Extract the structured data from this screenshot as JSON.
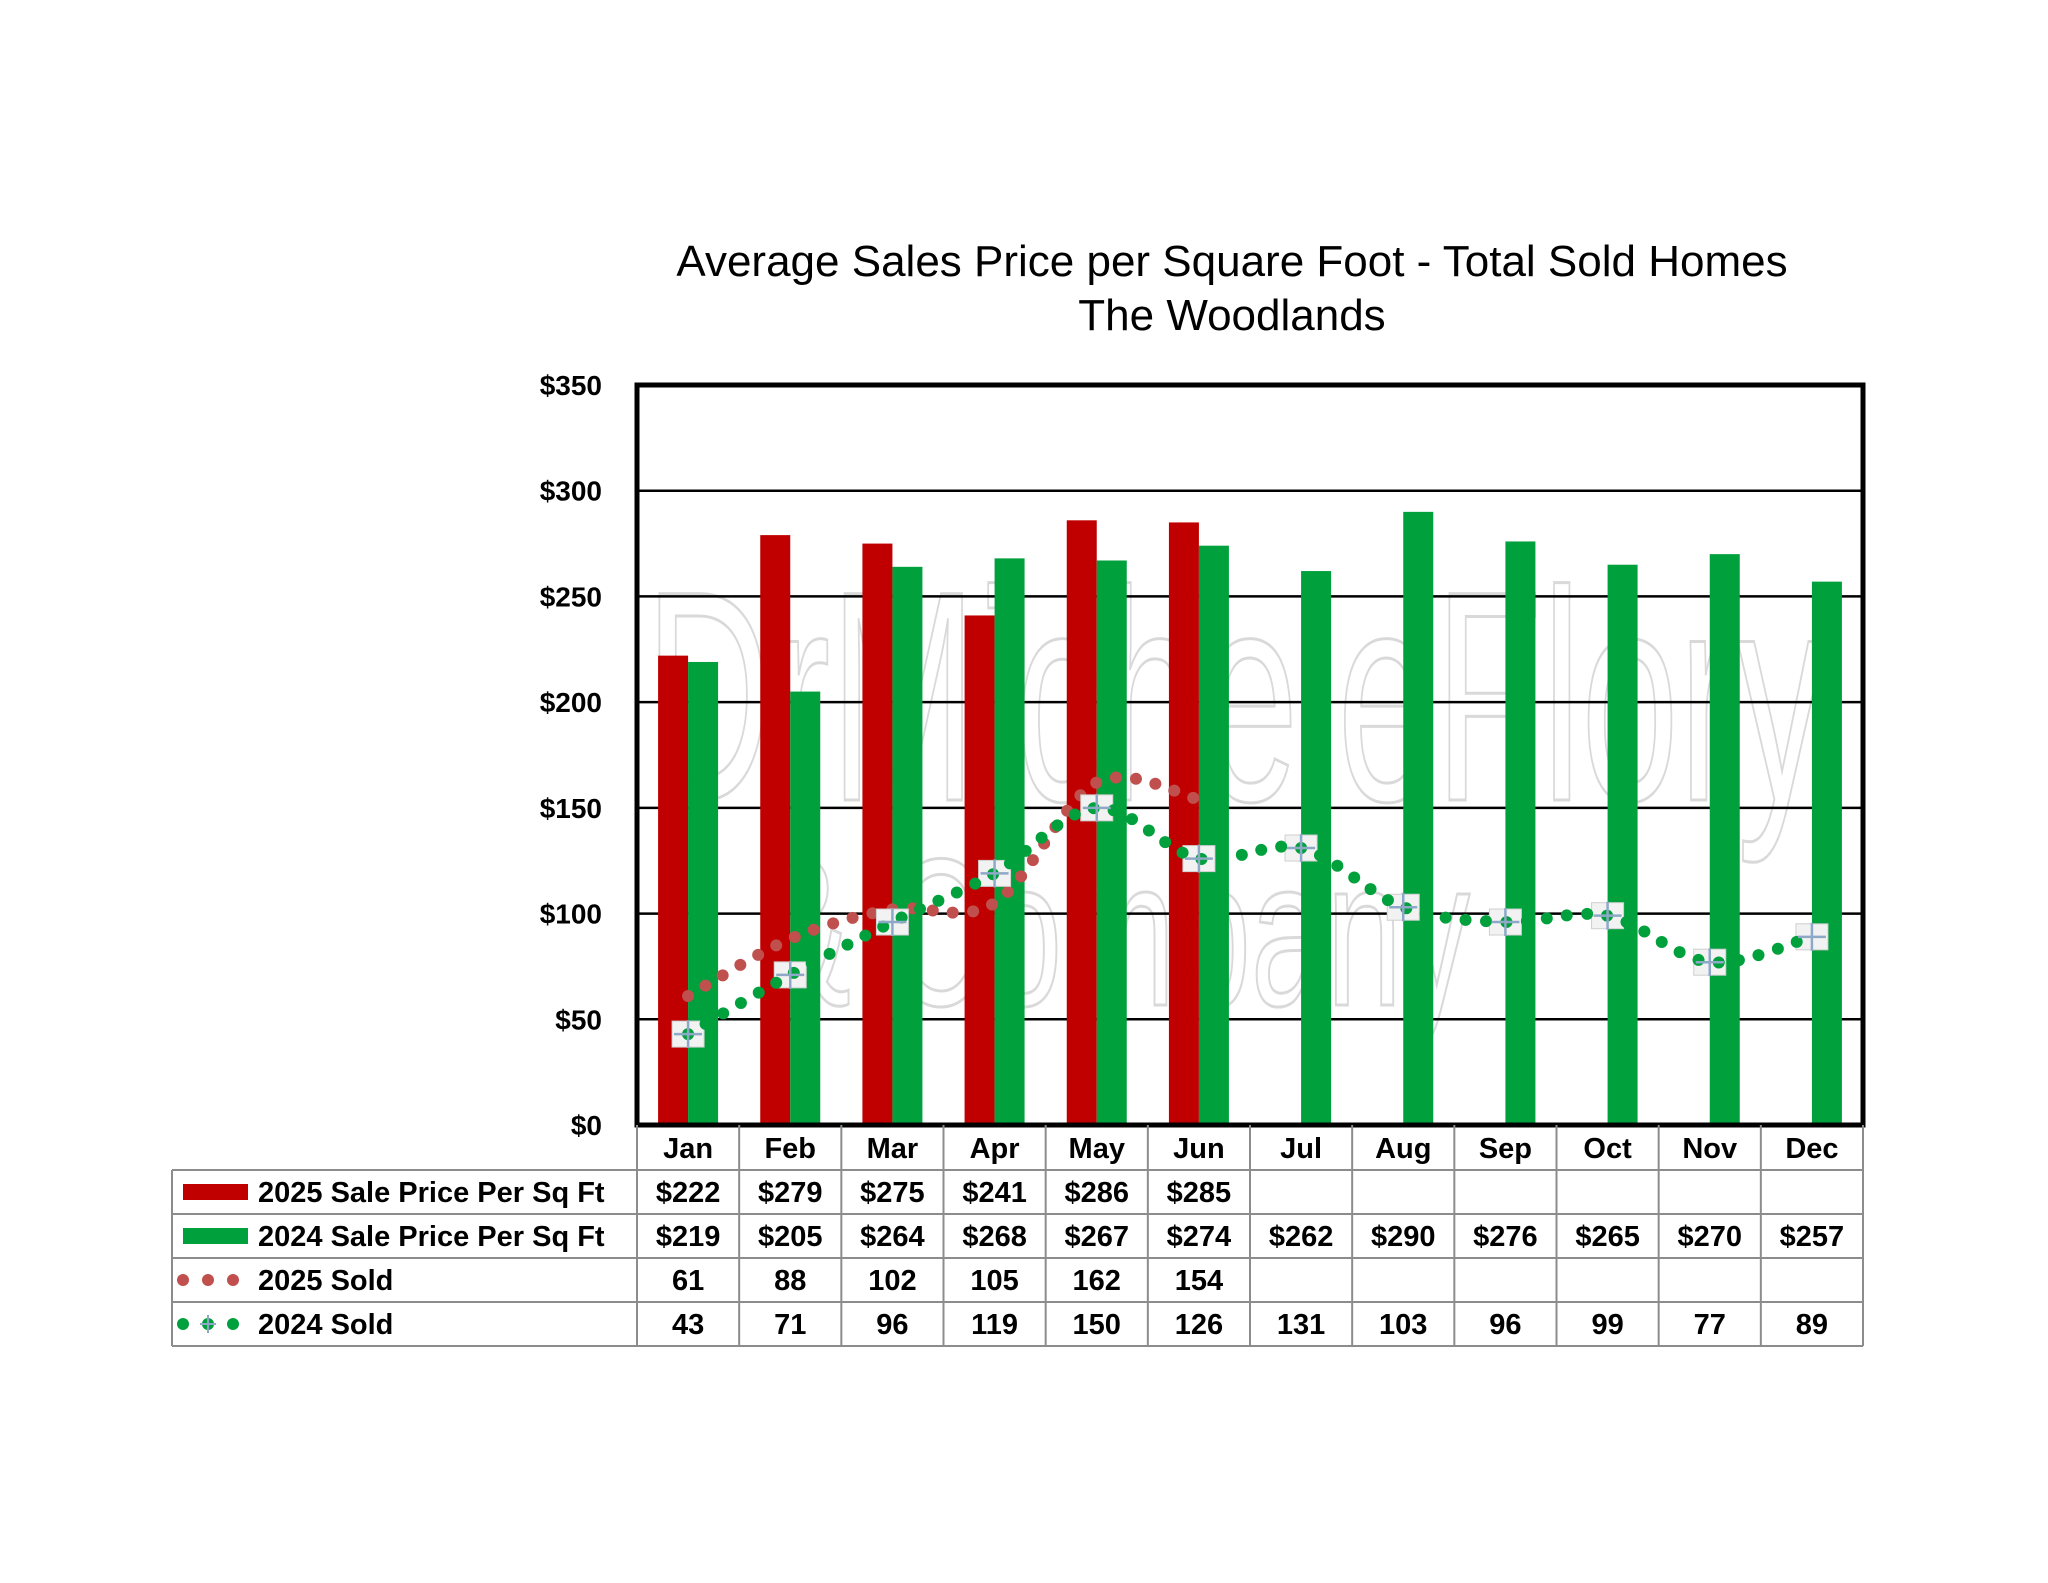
{
  "colors": {
    "series_2025_price": "#c00000",
    "series_2024_price": "#00a03c",
    "series_2025_sold": "#c0504d",
    "series_2024_sold": "#00a03c",
    "gridline": "#000000",
    "table_border": "#8c8c8c",
    "watermark": "#d9d9d9"
  },
  "watermark": {
    "line1": "DrMicheleFlory",
    "line2": "& Company"
  },
  "chart_data": {
    "type": "bar",
    "title": "Average Sales Price per Square Foot - Total Sold Homes",
    "subtitle": "The Woodlands",
    "categories": [
      "Jan",
      "Feb",
      "Mar",
      "Apr",
      "May",
      "Jun",
      "Jul",
      "Aug",
      "Sep",
      "Oct",
      "Nov",
      "Dec"
    ],
    "ylim": [
      0,
      350
    ],
    "yticks": [
      0,
      50,
      100,
      150,
      200,
      250,
      300,
      350
    ],
    "ytick_labels": [
      "$0",
      "$50",
      "$100",
      "$150",
      "$200",
      "$250",
      "$300",
      "$350"
    ],
    "grid": true,
    "legend": "data-table",
    "series": [
      {
        "name": "2025 Sale Price Per Sq Ft",
        "kind": "bar",
        "color": "#c00000",
        "values": [
          222,
          279,
          275,
          241,
          286,
          285,
          null,
          null,
          null,
          null,
          null,
          null
        ],
        "labels": [
          "$222",
          "$279",
          "$275",
          "$241",
          "$286",
          "$285",
          "",
          "",
          "",
          "",
          "",
          ""
        ]
      },
      {
        "name": "2024 Sale Price Per Sq Ft",
        "kind": "bar",
        "color": "#00a03c",
        "values": [
          219,
          205,
          264,
          268,
          267,
          274,
          262,
          290,
          276,
          265,
          270,
          257
        ],
        "labels": [
          "$219",
          "$205",
          "$264",
          "$268",
          "$267",
          "$274",
          "$262",
          "$290",
          "$276",
          "$265",
          "$270",
          "$257"
        ]
      },
      {
        "name": "2025 Sold",
        "kind": "dotted-line",
        "color": "#c0504d",
        "values": [
          61,
          88,
          102,
          105,
          162,
          154,
          null,
          null,
          null,
          null,
          null,
          null
        ],
        "labels": [
          "61",
          "88",
          "102",
          "105",
          "162",
          "154",
          "",
          "",
          "",
          "",
          "",
          ""
        ]
      },
      {
        "name": "2024 Sold",
        "kind": "dotted-line-markers",
        "color": "#00a03c",
        "values": [
          43,
          71,
          96,
          119,
          150,
          126,
          131,
          103,
          96,
          99,
          77,
          89
        ],
        "labels": [
          "43",
          "71",
          "96",
          "119",
          "150",
          "126",
          "131",
          "103",
          "96",
          "99",
          "77",
          "89"
        ]
      }
    ]
  }
}
